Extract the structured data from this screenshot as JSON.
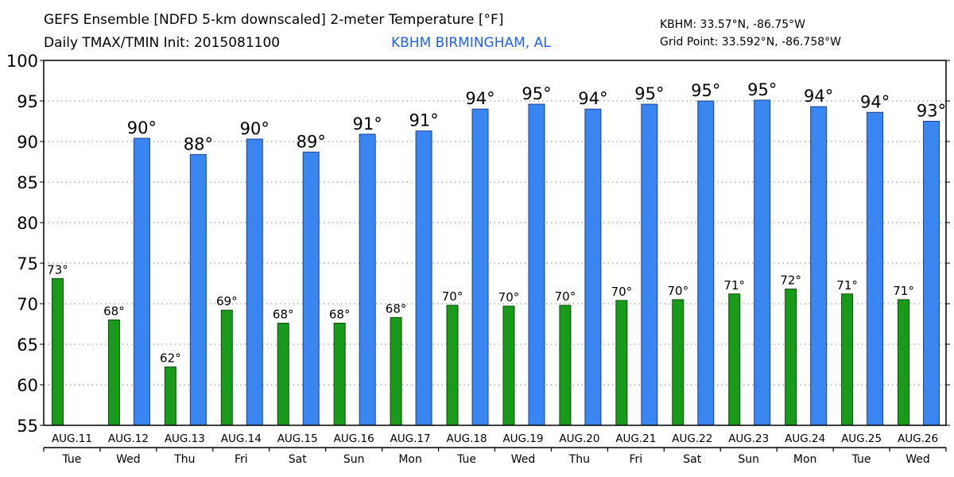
{
  "header": {
    "title_line1": "GEFS Ensemble [NDFD 5-km downscaled] 2-meter Temperature [°F]",
    "title_line2": "Daily TMAX/TMIN Init: 2015081100",
    "station_name": "KBHM BIRMINGHAM, AL",
    "station_coords": "KBHM: 33.57°N, -86.75°W",
    "grid_point": "Grid Point: 33.592°N, -86.758°W",
    "station_color": "#1f5fff"
  },
  "chart_data": {
    "type": "bar",
    "ylim": [
      55,
      100
    ],
    "yticks": [
      55,
      60,
      65,
      70,
      75,
      80,
      85,
      90,
      95,
      100
    ],
    "grid": "horizontal dotted",
    "categories": [
      "AUG.11",
      "AUG.12",
      "AUG.13",
      "AUG.14",
      "AUG.15",
      "AUG.16",
      "AUG.17",
      "AUG.18",
      "AUG.19",
      "AUG.20",
      "AUG.21",
      "AUG.22",
      "AUG.23",
      "AUG.24",
      "AUG.25",
      "AUG.26"
    ],
    "weekdays": [
      "Tue",
      "Wed",
      "Thu",
      "Fri",
      "Sat",
      "Sun",
      "Mon",
      "Tue",
      "Wed",
      "Thu",
      "Fri",
      "Sat",
      "Sun",
      "Mon",
      "Tue",
      "Wed"
    ],
    "series": [
      {
        "key": "tmin",
        "color": "#1a9a1a",
        "values": [
          73.1,
          68.0,
          62.2,
          69.2,
          67.6,
          67.6,
          68.3,
          69.8,
          69.7,
          69.8,
          70.4,
          70.5,
          71.2,
          71.8,
          71.2,
          70.5
        ],
        "labels": [
          "73°",
          "68°",
          "62°",
          "69°",
          "68°",
          "68°",
          "68°",
          "70°",
          "70°",
          "70°",
          "70°",
          "70°",
          "71°",
          "72°",
          "71°",
          "71°"
        ]
      },
      {
        "key": "tmax",
        "color": "#3a86f0",
        "values": [
          null,
          90.4,
          88.4,
          90.3,
          88.7,
          90.9,
          91.3,
          94.0,
          94.6,
          94.0,
          94.6,
          95.0,
          95.1,
          94.3,
          93.6,
          92.5
        ],
        "labels": [
          null,
          "90°",
          "88°",
          "90°",
          "89°",
          "91°",
          "91°",
          "94°",
          "95°",
          "94°",
          "95°",
          "95°",
          "95°",
          "94°",
          "94°",
          "93°"
        ]
      }
    ]
  }
}
